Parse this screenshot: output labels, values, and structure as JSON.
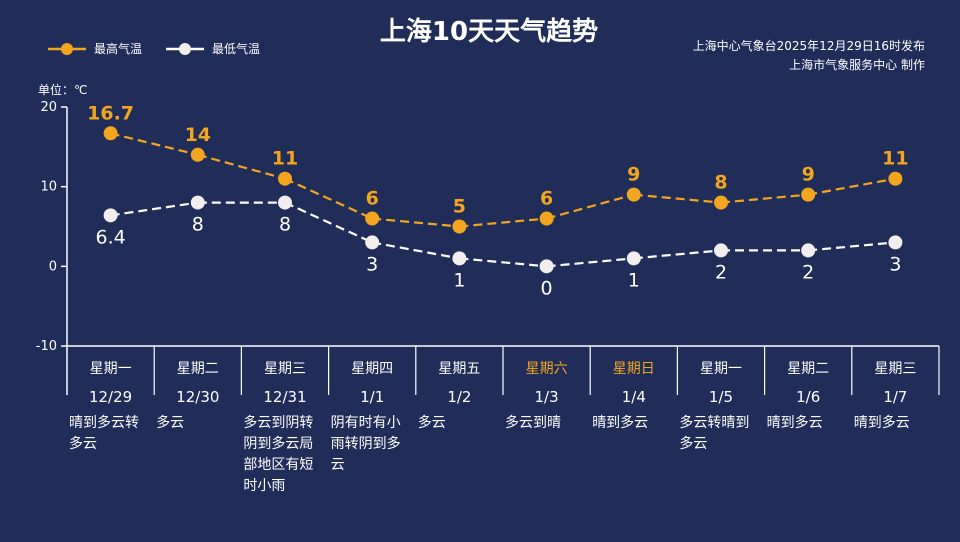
{
  "header": {
    "title": "上海10天天气趋势",
    "publisher_line": "上海中心气象台2025年12月29日16时发布",
    "producer_line": "上海市气象服务中心 制作"
  },
  "legend": {
    "high": "最高气温",
    "low": "最低气温"
  },
  "unit_label": "单位：℃",
  "colors": {
    "background": "#1f2d58",
    "high": "#f3a51f",
    "low": "#ffffff",
    "weekend": "#f3a51f",
    "axis": "#ffffff"
  },
  "chart_data": {
    "type": "line",
    "title": "上海10天天气趋势",
    "ylabel": "单位：℃",
    "ylim": [
      -10,
      20
    ],
    "yticks": [
      20,
      10,
      0,
      -10
    ],
    "categories": [
      "12/29",
      "12/30",
      "12/31",
      "1/1",
      "1/2",
      "1/3",
      "1/4",
      "1/5",
      "1/6",
      "1/7"
    ],
    "weekdays": [
      "星期一",
      "星期二",
      "星期三",
      "星期四",
      "星期五",
      "星期六",
      "星期日",
      "星期一",
      "星期二",
      "星期三"
    ],
    "weekend": [
      false,
      false,
      false,
      false,
      false,
      true,
      true,
      false,
      false,
      false
    ],
    "descriptions": [
      [
        "晴到多云转",
        "多云"
      ],
      [
        "多云"
      ],
      [
        "多云到阴转",
        "阴到多云局",
        "部地区有短",
        "时小雨"
      ],
      [
        "阴有时有小",
        "雨转阴到多",
        "云"
      ],
      [
        "多云"
      ],
      [
        "多云到晴"
      ],
      [
        "晴到多云"
      ],
      [
        "多云转晴到",
        "多云"
      ],
      [
        "晴到多云"
      ],
      [
        "晴到多云"
      ]
    ],
    "series": [
      {
        "name": "最高气温",
        "values": [
          16.7,
          14,
          11,
          6,
          5,
          6,
          9,
          8,
          9,
          11
        ],
        "labels": [
          "16.7",
          "14",
          "11",
          "6",
          "5",
          "6",
          "9",
          "8",
          "9",
          "11"
        ]
      },
      {
        "name": "最低气温",
        "values": [
          6.4,
          8,
          8,
          3,
          1,
          0,
          1,
          2,
          2,
          3
        ],
        "labels": [
          "6.4",
          "8",
          "8",
          "3",
          "1",
          "0",
          "1",
          "2",
          "2",
          "3"
        ]
      }
    ],
    "grid": false,
    "legend_position": "top-left"
  }
}
